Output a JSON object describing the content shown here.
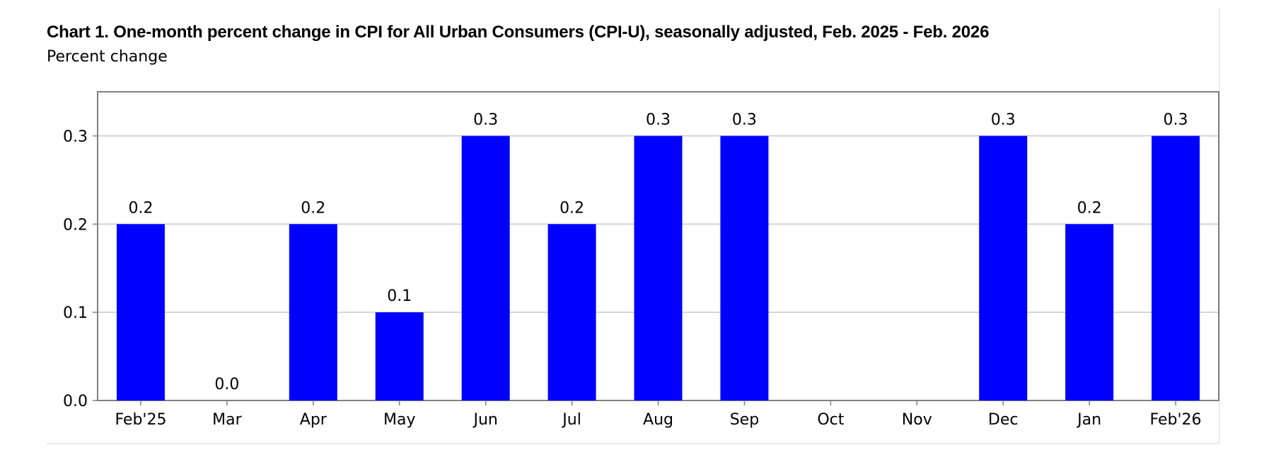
{
  "chart_data": {
    "type": "bar",
    "title": "Chart 1. One-month percent change in CPI for All Urban Consumers (CPI-U), seasonally adjusted, Feb. 2025 - Feb. 2026",
    "subtitle": "Percent change",
    "categories": [
      "Feb'25",
      "Mar",
      "Apr",
      "May",
      "Jun",
      "Jul",
      "Aug",
      "Sep",
      "Oct",
      "Nov",
      "Dec",
      "Jan",
      "Feb'26"
    ],
    "values": [
      0.2,
      0.0,
      0.2,
      0.1,
      0.3,
      0.2,
      0.3,
      0.3,
      null,
      null,
      0.3,
      0.2,
      0.3
    ],
    "data_labels": [
      "0.2",
      "0.0",
      "0.2",
      "0.1",
      "0.3",
      "0.2",
      "0.3",
      "0.3",
      "",
      "",
      "0.3",
      "0.2",
      "0.3"
    ],
    "yticks": [
      0.0,
      0.1,
      0.2,
      0.3
    ],
    "ytick_labels": [
      "0.0",
      "0.1",
      "0.2",
      "0.3"
    ],
    "ylim": [
      0,
      0.35
    ],
    "grid": true,
    "bar_color": "#0000ff",
    "grid_color": "#c8c8c8",
    "axis_color": "#808080"
  }
}
